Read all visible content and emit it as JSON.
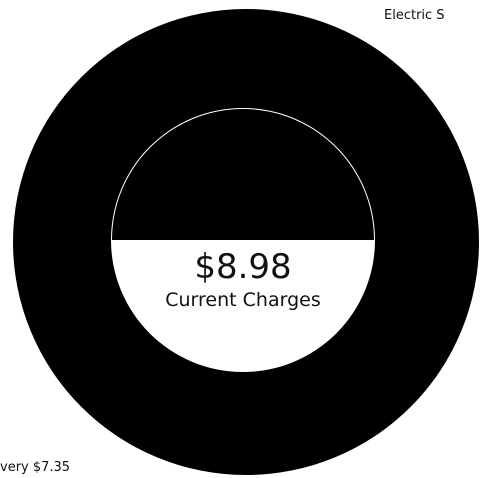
{
  "labels": [
    "Electric S",
    "very $7.35"
  ],
  "center": {
    "amount": "$8.98",
    "caption": "Current Charges"
  }
}
